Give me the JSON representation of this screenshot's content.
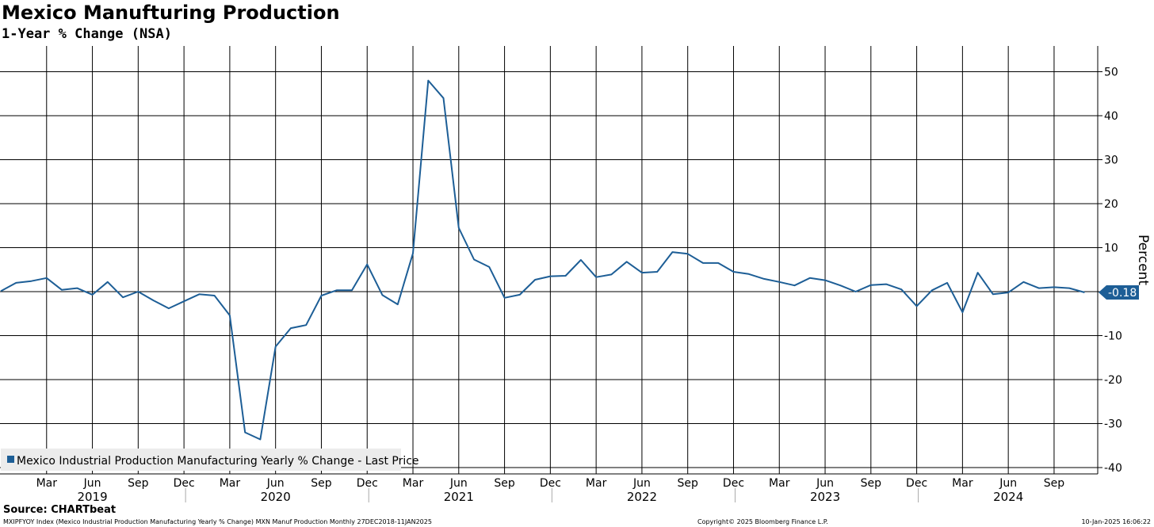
{
  "header": {
    "title": "Mexico Manufturing Production",
    "subtitle": "1-Year % Change (NSA)"
  },
  "colors": {
    "series": "#1d5e96",
    "grid": "#000000",
    "background": "#ffffff"
  },
  "chart_data": {
    "type": "line",
    "title": "Mexico Manufturing Production",
    "subtitle": "1-Year % Change (NSA)",
    "ylabel": "Percent",
    "ylim": [
      -40,
      55
    ],
    "yticks": [
      -40,
      -30,
      -20,
      -10,
      0,
      10,
      20,
      30,
      40,
      50
    ],
    "y_axis_side": "right",
    "grid": true,
    "legend_position": "bottom-left",
    "x_start": "2018-12",
    "x_end": "2024-12",
    "month_tick_labels": [
      {
        "label": "Mar",
        "date": "2019-03"
      },
      {
        "label": "Jun",
        "date": "2019-06"
      },
      {
        "label": "Sep",
        "date": "2019-09"
      },
      {
        "label": "Dec",
        "date": "2019-12"
      },
      {
        "label": "Mar",
        "date": "2020-03"
      },
      {
        "label": "Jun",
        "date": "2020-06"
      },
      {
        "label": "Sep",
        "date": "2020-09"
      },
      {
        "label": "Dec",
        "date": "2020-12"
      },
      {
        "label": "Mar",
        "date": "2021-03"
      },
      {
        "label": "Jun",
        "date": "2021-06"
      },
      {
        "label": "Sep",
        "date": "2021-09"
      },
      {
        "label": "Dec",
        "date": "2021-12"
      },
      {
        "label": "Mar",
        "date": "2022-03"
      },
      {
        "label": "Jun",
        "date": "2022-06"
      },
      {
        "label": "Sep",
        "date": "2022-09"
      },
      {
        "label": "Dec",
        "date": "2022-12"
      },
      {
        "label": "Mar",
        "date": "2023-03"
      },
      {
        "label": "Jun",
        "date": "2023-06"
      },
      {
        "label": "Sep",
        "date": "2023-09"
      },
      {
        "label": "Dec",
        "date": "2023-12"
      },
      {
        "label": "Mar",
        "date": "2024-03"
      },
      {
        "label": "Jun",
        "date": "2024-06"
      },
      {
        "label": "Sep",
        "date": "2024-09"
      }
    ],
    "year_labels": [
      {
        "label": "2019",
        "date": "2019-06"
      },
      {
        "label": "2020",
        "date": "2020-06"
      },
      {
        "label": "2021",
        "date": "2021-06"
      },
      {
        "label": "2022",
        "date": "2022-06"
      },
      {
        "label": "2023",
        "date": "2023-06"
      },
      {
        "label": "2024",
        "date": "2024-06"
      }
    ],
    "last_value_label": "-0.18",
    "series": [
      {
        "name": "Mexico Industrial Production Manufacturing Yearly % Change - Last Price",
        "x": [
          "2018-12",
          "2019-01",
          "2019-02",
          "2019-03",
          "2019-04",
          "2019-05",
          "2019-06",
          "2019-07",
          "2019-08",
          "2019-09",
          "2019-10",
          "2019-11",
          "2019-12",
          "2020-01",
          "2020-02",
          "2020-03",
          "2020-04",
          "2020-05",
          "2020-06",
          "2020-07",
          "2020-08",
          "2020-09",
          "2020-10",
          "2020-11",
          "2020-12",
          "2021-01",
          "2021-02",
          "2021-03",
          "2021-04",
          "2021-05",
          "2021-06",
          "2021-07",
          "2021-08",
          "2021-09",
          "2021-10",
          "2021-11",
          "2021-12",
          "2022-01",
          "2022-02",
          "2022-03",
          "2022-04",
          "2022-05",
          "2022-06",
          "2022-07",
          "2022-08",
          "2022-09",
          "2022-10",
          "2022-11",
          "2022-12",
          "2023-01",
          "2023-02",
          "2023-03",
          "2023-04",
          "2023-05",
          "2023-06",
          "2023-07",
          "2023-08",
          "2023-09",
          "2023-10",
          "2023-11",
          "2023-12",
          "2024-01",
          "2024-02",
          "2024-03",
          "2024-04",
          "2024-05",
          "2024-06",
          "2024-07",
          "2024-08",
          "2024-09",
          "2024-10",
          "2024-11"
        ],
        "values": [
          0.1,
          2.0,
          2.4,
          3.1,
          0.4,
          0.8,
          -0.7,
          2.2,
          -1.3,
          0.0,
          -2.0,
          -3.8,
          -2.2,
          -0.6,
          -0.9,
          -5.4,
          -32.0,
          -33.6,
          -12.5,
          -8.3,
          -7.6,
          -0.9,
          0.3,
          0.3,
          6.2,
          -0.8,
          -2.9,
          8.7,
          48.0,
          44.0,
          14.5,
          7.3,
          5.6,
          -1.4,
          -0.7,
          2.7,
          3.5,
          3.6,
          7.2,
          3.3,
          3.9,
          6.8,
          4.3,
          4.5,
          9.0,
          8.6,
          6.5,
          6.5,
          4.5,
          4.0,
          2.9,
          2.2,
          1.4,
          3.1,
          2.6,
          1.4,
          0.0,
          1.5,
          1.7,
          0.5,
          -3.3,
          0.3,
          2.0,
          -4.7,
          4.3,
          -0.6,
          -0.2,
          2.2,
          0.8,
          1.0,
          0.8,
          -0.18
        ]
      }
    ]
  },
  "footer": {
    "source": "Source: CHARTbeat",
    "index_info": "MXIPFYOY Index (Mexico Industrial Production Manufacturing Yearly % Change) MXN Manuf Production  Monthly 27DEC2018-11JAN2025",
    "copyright": "Copyright© 2025 Bloomberg Finance L.P.",
    "timestamp": "10-Jan-2025 16:06:22"
  }
}
